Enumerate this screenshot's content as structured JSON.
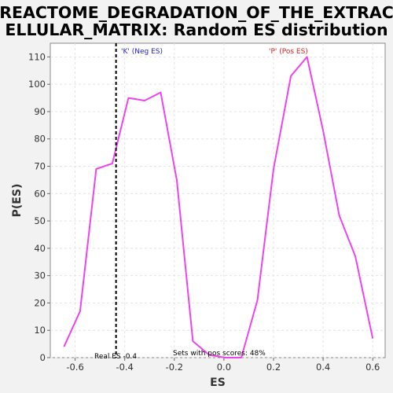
{
  "chart_data": {
    "type": "line",
    "title_line1": "REACTOME_DEGRADATION_OF_THE_EXTRAC",
    "title_line2": "ELLULAR_MATRIX: Random ES distribution",
    "xlabel": "ES",
    "ylabel": "P(ES)",
    "xlim": [
      -0.7,
      0.65
    ],
    "ylim": [
      0,
      115
    ],
    "xticks": [
      -0.6,
      -0.4,
      -0.2,
      0.0,
      0.2,
      0.4,
      0.6
    ],
    "xtick_labels": [
      "-0.6",
      "-0.4",
      "-0.2",
      "0.0",
      "0.2",
      "0.4",
      "0.6"
    ],
    "yticks": [
      0,
      10,
      20,
      30,
      40,
      50,
      60,
      70,
      80,
      90,
      100,
      110
    ],
    "ytick_labels": [
      "0",
      "10",
      "20",
      "30",
      "40",
      "50",
      "60",
      "70",
      "80",
      "90",
      "100",
      "110"
    ],
    "grid": true,
    "series": [
      {
        "color": "#ee44ee",
        "x": [
          -0.645,
          -0.58,
          -0.515,
          -0.45,
          -0.385,
          -0.32,
          -0.255,
          -0.19,
          -0.125,
          -0.06,
          0.005,
          0.07,
          0.135,
          0.2,
          0.27,
          0.335,
          0.4,
          0.465,
          0.53,
          0.6
        ],
        "y": [
          4,
          17,
          69,
          71,
          95,
          94,
          97,
          65,
          6,
          1,
          0,
          0,
          21,
          69,
          103,
          110,
          83,
          52,
          37,
          7
        ]
      }
    ],
    "real_es": {
      "x": -0.435,
      "color": "#000000",
      "label": "Real ES -0.4"
    },
    "annotations": {
      "neg": {
        "text": "'K' (Neg ES)",
        "color": "#2222dd"
      },
      "pos": {
        "text": "'P' (Pos ES)",
        "color": "#dd2222"
      },
      "pos_scores": {
        "text": "Sets with pos scores: 48%",
        "color": "#000000"
      }
    }
  }
}
